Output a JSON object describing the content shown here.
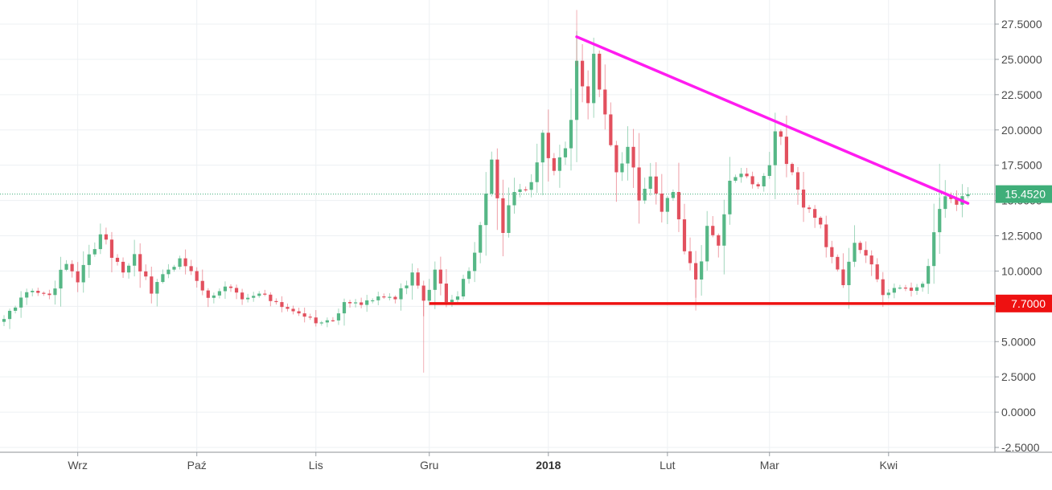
{
  "chart_data": {
    "type": "candlestick",
    "x_labels": [
      {
        "label": "Wrz",
        "index": 13,
        "bold": false
      },
      {
        "label": "Paź",
        "index": 34,
        "bold": false
      },
      {
        "label": "Lis",
        "index": 55,
        "bold": false
      },
      {
        "label": "Gru",
        "index": 75,
        "bold": false
      },
      {
        "label": "2018",
        "index": 96,
        "bold": true
      },
      {
        "label": "Lut",
        "index": 117,
        "bold": false
      },
      {
        "label": "Mar",
        "index": 135,
        "bold": false
      },
      {
        "label": "Kwi",
        "index": 156,
        "bold": false
      }
    ],
    "y_ticks": [
      "27.5000",
      "25.0000",
      "22.5000",
      "20.0000",
      "17.5000",
      "15.0000",
      "12.5000",
      "10.0000",
      "7.5000",
      "5.0000",
      "2.5000",
      "0.0000",
      "-2.5000"
    ],
    "ylim": [
      -3.3,
      28.5
    ],
    "grid": true,
    "last_price": {
      "label": "15.4520",
      "value": 15.452,
      "color": "#3fae79"
    },
    "support_line": {
      "label": "7.7000",
      "value": 7.7,
      "from_index": 75,
      "color": "#ee1111"
    },
    "resistance_line": {
      "from": {
        "index": 101,
        "value": 26.6
      },
      "to": {
        "index": 170,
        "value": 14.8
      },
      "color": "#ff1cf0"
    },
    "colors": {
      "up": "#56b786",
      "down": "#e2505e"
    },
    "anchors": [
      [
        0,
        6.6
      ],
      [
        4,
        8.5
      ],
      [
        8,
        8.3
      ],
      [
        11,
        10.5
      ],
      [
        13,
        9.2
      ],
      [
        17,
        12.6
      ],
      [
        21,
        9.9
      ],
      [
        23,
        11.2
      ],
      [
        26,
        8.4
      ],
      [
        29,
        10.1
      ],
      [
        31,
        10.9
      ],
      [
        34,
        9.3
      ],
      [
        36,
        8.1
      ],
      [
        39,
        8.9
      ],
      [
        42,
        8.0
      ],
      [
        45,
        8.4
      ],
      [
        48,
        7.8
      ],
      [
        52,
        7.0
      ],
      [
        55,
        6.3
      ],
      [
        58,
        6.5
      ],
      [
        60,
        7.8
      ],
      [
        63,
        7.6
      ],
      [
        66,
        8.2
      ],
      [
        69,
        8.0
      ],
      [
        72,
        9.9
      ],
      [
        74,
        7.9
      ],
      [
        76,
        10.1
      ],
      [
        78,
        7.8
      ],
      [
        80,
        8.2
      ],
      [
        83,
        11.3
      ],
      [
        86,
        17.9
      ],
      [
        88,
        12.7
      ],
      [
        90,
        15.6
      ],
      [
        93,
        16.3
      ],
      [
        95,
        19.8
      ],
      [
        97,
        17.1
      ],
      [
        99,
        18.7
      ],
      [
        101,
        24.9
      ],
      [
        103,
        21.9
      ],
      [
        104,
        25.4
      ],
      [
        106,
        21.1
      ],
      [
        108,
        17.0
      ],
      [
        110,
        18.8
      ],
      [
        112,
        15.0
      ],
      [
        114,
        16.7
      ],
      [
        116,
        14.2
      ],
      [
        118,
        15.6
      ],
      [
        120,
        11.4
      ],
      [
        122,
        9.4
      ],
      [
        124,
        13.2
      ],
      [
        126,
        11.8
      ],
      [
        128,
        16.4
      ],
      [
        130,
        16.9
      ],
      [
        133,
        16.0
      ],
      [
        135,
        17.5
      ],
      [
        136,
        19.9
      ],
      [
        139,
        17.0
      ],
      [
        141,
        14.5
      ],
      [
        144,
        13.3
      ],
      [
        146,
        11.0
      ],
      [
        148,
        9.0
      ],
      [
        150,
        12.0
      ],
      [
        152,
        11.1
      ],
      [
        155,
        8.3
      ],
      [
        157,
        8.8
      ],
      [
        160,
        8.6
      ],
      [
        162,
        9.1
      ],
      [
        165,
        14.4
      ],
      [
        166,
        15.3
      ],
      [
        168,
        14.7
      ],
      [
        170,
        15.45
      ]
    ]
  }
}
